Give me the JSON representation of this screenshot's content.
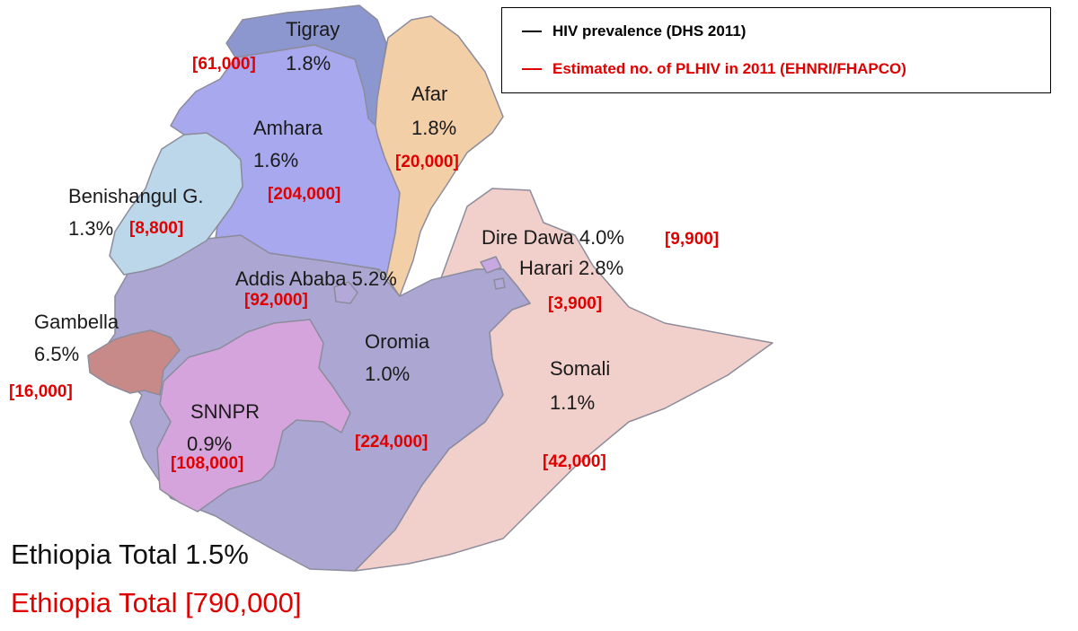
{
  "legend": {
    "prevalence_label": "HIV prevalence (DHS 2011)",
    "plhiv_label": "Estimated  no.  of PLHIV  in 2011 (EHNRI/FHAPCO)",
    "prevalence_color": "#000000",
    "plhiv_color": "#e00000"
  },
  "regions": [
    {
      "name": "Tigray",
      "prevalence": "1.8%",
      "plhiv": "[61,000]",
      "fill": "#8c97cf"
    },
    {
      "name": "Afar",
      "prevalence": "1.8%",
      "plhiv": "[20,000]",
      "fill": "#f3cfa8"
    },
    {
      "name": "Amhara",
      "prevalence": "1.6%",
      "plhiv": "[204,000]",
      "fill": "#a8a8ee"
    },
    {
      "name": "Benishangul G.",
      "prevalence": "1.3%",
      "plhiv": "[8,800]",
      "fill": "#bcd6ea"
    },
    {
      "name": "Dire Dawa",
      "prevalence": "4.0%",
      "plhiv": "[9,900]",
      "fill": "#c8a8e0"
    },
    {
      "name": "Harari",
      "prevalence": "2.8%",
      "plhiv": "[3,900]",
      "fill": "#b0a8d8"
    },
    {
      "name": "Addis Ababa",
      "prevalence": "5.2%",
      "plhiv": "[92,000]",
      "fill": "#b4a8d8"
    },
    {
      "name": "Gambella",
      "prevalence": "6.5%",
      "plhiv": "[16,000]",
      "fill": "#c88a88"
    },
    {
      "name": "Oromia",
      "prevalence": "1.0%",
      "plhiv": "[224,000]",
      "fill": "#aba7d2"
    },
    {
      "name": "Somali",
      "prevalence": "1.1%",
      "plhiv": "[42,000]",
      "fill": "#f1d0cc"
    },
    {
      "name": "SNNPR",
      "prevalence": "0.9%",
      "plhiv": "[108,000]",
      "fill": "#d6a4dc"
    }
  ],
  "totals": {
    "prevalence": "Ethiopia Total  1.5%",
    "plhiv": "Ethiopia Total  [790,000]"
  }
}
